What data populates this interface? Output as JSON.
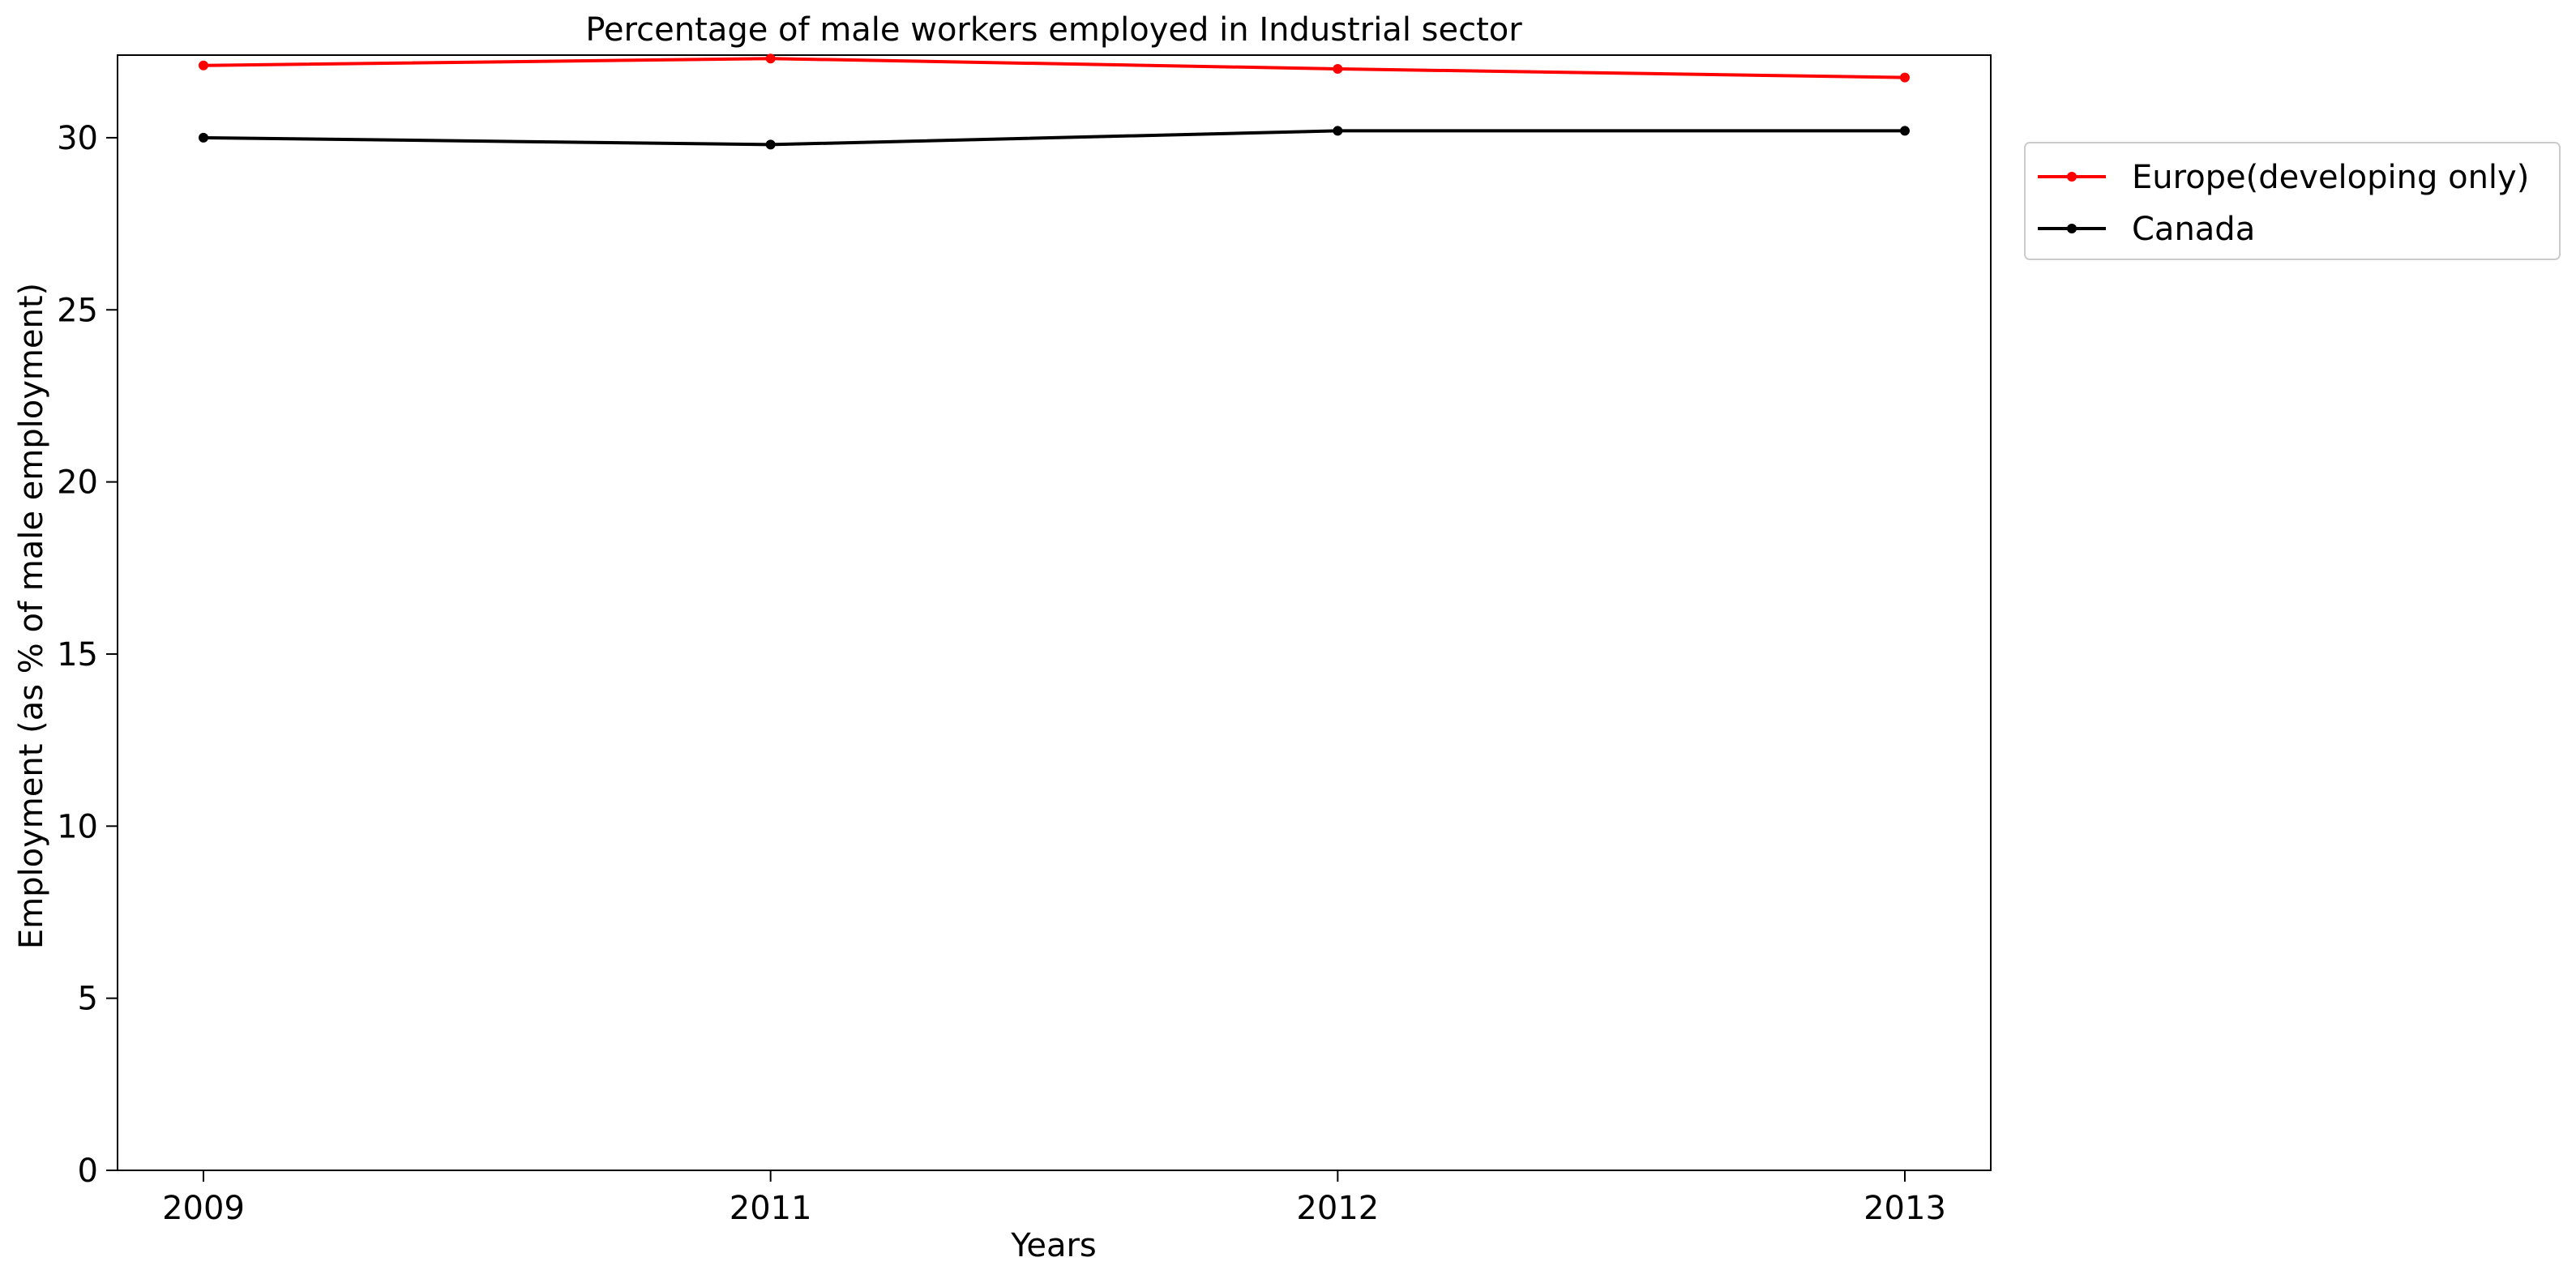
{
  "chart_data": {
    "type": "line",
    "title": "Percentage of male workers employed in Industrial sector",
    "xlabel": "Years",
    "ylabel": "Employment (as % of male employment)",
    "categories": [
      "2009",
      "2011",
      "2012",
      "2013"
    ],
    "ylim": [
      0,
      32.4
    ],
    "yticks": [
      0,
      5,
      10,
      15,
      20,
      25,
      30
    ],
    "grid": false,
    "legend_position": "outside-right-top",
    "series": [
      {
        "name": "Europe(developing only)",
        "color": "#ff0000",
        "marker": "dot",
        "values": [
          32.1,
          32.3,
          32.0,
          31.75
        ]
      },
      {
        "name": "Canada",
        "color": "#000000",
        "marker": "dot",
        "values": [
          30.0,
          29.8,
          30.2,
          30.2
        ]
      }
    ]
  }
}
